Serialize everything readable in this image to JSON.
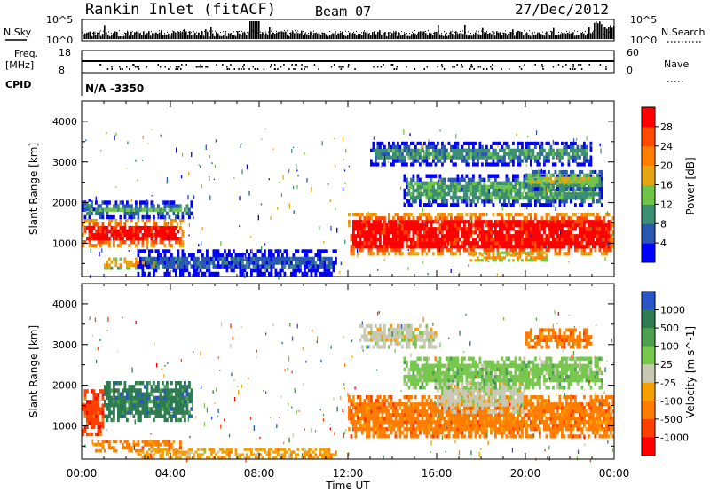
{
  "header": {
    "station": "Rankin Inlet (fitACF)",
    "beam": "Beam 07",
    "date": "27/Dec/2012"
  },
  "strip_labels": {
    "n_sky": "N.Sky",
    "n_search": "N.Search",
    "freq_line1": "Freq.",
    "freq_line2": "[MHz]",
    "nave": "Nave",
    "cpid": "CPID",
    "cpid_value": "N/A -3350",
    "sky_ticks": [
      "10^5",
      "10^0"
    ],
    "search_ticks": [
      "10^5",
      "10^0"
    ],
    "freq_ticks": [
      "18",
      "8"
    ],
    "nave_ticks": [
      "60",
      "0"
    ]
  },
  "colors": {
    "power_scale": [
      "#0000ff",
      "#2a58b0",
      "#3c8f73",
      "#70c44a",
      "#e6a614",
      "#ff7f00",
      "#ff4a00",
      "#ff0000"
    ],
    "velocity_scale": [
      "#2a55c8",
      "#2e7d52",
      "#4ca050",
      "#78c850",
      "#c8c8b4",
      "#f5a000",
      "#ff7c00",
      "#ff4000",
      "#ff0000"
    ]
  },
  "chart_data": [
    {
      "type": "heatmap",
      "name": "power-panel",
      "ylabel": "Slant Range [km]",
      "xlabel": "Time UT",
      "x_ticks": [
        "00:00",
        "04:00",
        "08:00",
        "12:00",
        "16:00",
        "20:00",
        "00:00"
      ],
      "x_range_hours": [
        0,
        24
      ],
      "y_ticks": [
        1000,
        2000,
        3000,
        4000
      ],
      "y_range_km": [
        180,
        4500
      ],
      "colorbar": {
        "label": "Power [dB]",
        "ticks": [
          4,
          8,
          12,
          16,
          20,
          24,
          28
        ],
        "range": [
          0,
          32
        ]
      },
      "regions": [
        {
          "t0": 0.0,
          "t1": 4.6,
          "r0": 900,
          "r1": 1600,
          "level": 30
        },
        {
          "t0": 0.0,
          "t1": 5.0,
          "r0": 1600,
          "r1": 2050,
          "level": 12
        },
        {
          "t0": 1.0,
          "t1": 4.5,
          "r0": 350,
          "r1": 650,
          "level": 24
        },
        {
          "t0": 0.0,
          "t1": 0.6,
          "r0": 1800,
          "r1": 2100,
          "level": 14
        },
        {
          "t0": 2.5,
          "t1": 11.5,
          "r0": 200,
          "r1": 850,
          "level": 6
        },
        {
          "t0": 12.0,
          "t1": 24.0,
          "r0": 700,
          "r1": 1750,
          "level": 30
        },
        {
          "t0": 17.5,
          "t1": 21.0,
          "r0": 550,
          "r1": 800,
          "level": 26
        },
        {
          "t0": 14.5,
          "t1": 23.5,
          "r0": 1900,
          "r1": 2700,
          "level": 11
        },
        {
          "t0": 13.0,
          "t1": 23.0,
          "r0": 2900,
          "r1": 3500,
          "level": 10
        },
        {
          "t0": 20.0,
          "t1": 23.5,
          "r0": 2300,
          "r1": 2800,
          "level": 16
        }
      ]
    },
    {
      "type": "heatmap",
      "name": "velocity-panel",
      "ylabel": "Slant Range [km]",
      "xlabel": "Time UT",
      "x_ticks": [
        "00:00",
        "04:00",
        "08:00",
        "12:00",
        "16:00",
        "20:00",
        "00:00"
      ],
      "x_range_hours": [
        0,
        24
      ],
      "y_ticks": [
        1000,
        2000,
        3000,
        4000
      ],
      "y_range_km": [
        180,
        4500
      ],
      "colorbar": {
        "label": "Velocity [m s^-1]",
        "ticks": [
          "1000",
          "500",
          "100",
          "25",
          "-25",
          "-100",
          "-500",
          "-1000"
        ],
        "range": [
          -1000,
          1000
        ]
      },
      "regions": [
        {
          "t0": 0.0,
          "t1": 1.0,
          "r0": 750,
          "r1": 1900,
          "level": 7
        },
        {
          "t0": 1.0,
          "t1": 5.0,
          "r0": 1100,
          "r1": 2100,
          "level": 1
        },
        {
          "t0": 0.5,
          "t1": 4.5,
          "r0": 350,
          "r1": 650,
          "level": 6
        },
        {
          "t0": 2.5,
          "t1": 11.5,
          "r0": 200,
          "r1": 450,
          "level": 5
        },
        {
          "t0": 12.0,
          "t1": 24.0,
          "r0": 700,
          "r1": 1750,
          "level": 6
        },
        {
          "t0": 16.0,
          "t1": 20.0,
          "r0": 1300,
          "r1": 2100,
          "level": 4
        },
        {
          "t0": 14.5,
          "t1": 23.5,
          "r0": 1900,
          "r1": 2700,
          "level": 3
        },
        {
          "t0": 20.0,
          "t1": 23.0,
          "r0": 2900,
          "r1": 3400,
          "level": 6
        },
        {
          "t0": 12.5,
          "t1": 16.0,
          "r0": 2900,
          "r1": 3500,
          "level": 4
        }
      ]
    }
  ]
}
